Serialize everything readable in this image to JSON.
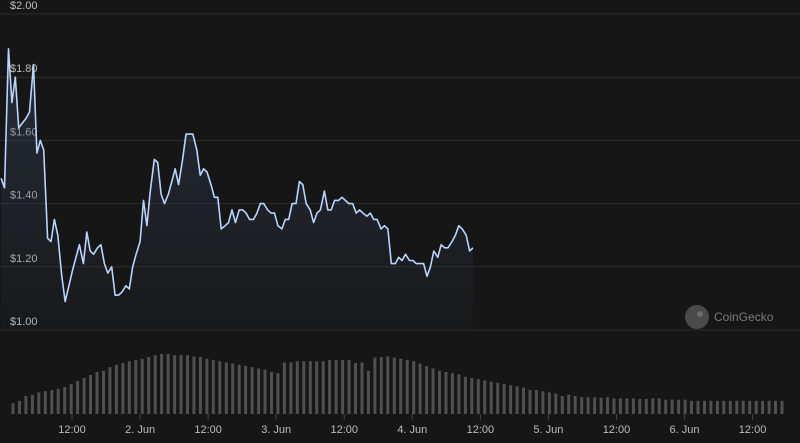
{
  "watermark": {
    "text": "CoinGecko",
    "icon": "coingecko-logo"
  },
  "chart_data": {
    "type": "line",
    "title": "",
    "xlabel": "",
    "ylabel": "",
    "ylim": [
      1.0,
      2.0
    ],
    "y_ticks": [
      {
        "value": 1.0,
        "label": "$1.00"
      },
      {
        "value": 1.2,
        "label": "$1.20"
      },
      {
        "value": 1.4,
        "label": "$1.40"
      },
      {
        "value": 1.6,
        "label": "$1.60"
      },
      {
        "value": 1.8,
        "label": "$1.80"
      },
      {
        "value": 2.0,
        "label": "$2.00"
      }
    ],
    "x_range_hours": [
      -12.7,
      126.6
    ],
    "x_ticks": [
      {
        "hour": 0,
        "label": "12:00"
      },
      {
        "hour": 12,
        "label": "2. Jun"
      },
      {
        "hour": 24,
        "label": "12:00"
      },
      {
        "hour": 36,
        "label": "3. Jun"
      },
      {
        "hour": 48,
        "label": "12:00"
      },
      {
        "hour": 60,
        "label": "4. Jun"
      },
      {
        "hour": 72,
        "label": "12:00"
      },
      {
        "hour": 84,
        "label": "5. Jun"
      },
      {
        "hour": 96,
        "label": "12:00"
      },
      {
        "hour": 108,
        "label": "6. Jun"
      },
      {
        "hour": 120,
        "label": "12:00"
      }
    ],
    "grid": true,
    "colors": {
      "line": "#b9d4ff",
      "area": "#3a4a64",
      "volume": "#505050",
      "grid": "#2c2c2c",
      "background": "#161616"
    },
    "series": [
      {
        "values": [
          [
            -12.5,
            1.48
          ],
          [
            -11.9,
            1.45
          ],
          [
            -11.2,
            1.89
          ],
          [
            -10.6,
            1.72
          ],
          [
            -10.0,
            1.8
          ],
          [
            -9.4,
            1.64
          ],
          [
            -8.1,
            1.67
          ],
          [
            -7.5,
            1.69
          ],
          [
            -6.8,
            1.84
          ],
          [
            -6.2,
            1.56
          ],
          [
            -5.6,
            1.6
          ],
          [
            -5.0,
            1.57
          ],
          [
            -4.3,
            1.29
          ],
          [
            -3.7,
            1.28
          ],
          [
            -3.1,
            1.35
          ],
          [
            -2.5,
            1.3
          ],
          [
            -1.8,
            1.17
          ],
          [
            -1.2,
            1.09
          ],
          [
            0.1,
            1.19
          ],
          [
            0.7,
            1.23
          ],
          [
            1.3,
            1.27
          ],
          [
            2.0,
            1.21
          ],
          [
            2.6,
            1.31
          ],
          [
            3.2,
            1.25
          ],
          [
            3.8,
            1.24
          ],
          [
            4.5,
            1.26
          ],
          [
            5.1,
            1.27
          ],
          [
            5.7,
            1.21
          ],
          [
            6.3,
            1.18
          ],
          [
            7.0,
            1.2
          ],
          [
            7.6,
            1.11
          ],
          [
            8.2,
            1.11
          ],
          [
            8.8,
            1.12
          ],
          [
            9.5,
            1.14
          ],
          [
            10.1,
            1.13
          ],
          [
            10.7,
            1.2
          ],
          [
            11.3,
            1.24
          ],
          [
            12.0,
            1.28
          ],
          [
            12.6,
            1.41
          ],
          [
            13.2,
            1.33
          ],
          [
            13.8,
            1.44
          ],
          [
            14.5,
            1.54
          ],
          [
            15.1,
            1.53
          ],
          [
            15.7,
            1.43
          ],
          [
            16.3,
            1.4
          ],
          [
            17.0,
            1.43
          ],
          [
            17.6,
            1.47
          ],
          [
            18.2,
            1.51
          ],
          [
            18.8,
            1.46
          ],
          [
            19.5,
            1.54
          ],
          [
            20.1,
            1.62
          ],
          [
            20.7,
            1.62
          ],
          [
            21.3,
            1.62
          ],
          [
            22.0,
            1.57
          ],
          [
            22.6,
            1.49
          ],
          [
            23.2,
            1.51
          ],
          [
            23.8,
            1.5
          ],
          [
            24.5,
            1.46
          ],
          [
            25.1,
            1.42
          ],
          [
            25.7,
            1.42
          ],
          [
            26.3,
            1.32
          ],
          [
            27.0,
            1.33
          ],
          [
            27.6,
            1.34
          ],
          [
            28.2,
            1.38
          ],
          [
            28.8,
            1.34
          ],
          [
            29.5,
            1.38
          ],
          [
            30.1,
            1.38
          ],
          [
            30.7,
            1.37
          ],
          [
            31.3,
            1.35
          ],
          [
            32.0,
            1.35
          ],
          [
            32.6,
            1.37
          ],
          [
            33.2,
            1.4
          ],
          [
            33.8,
            1.4
          ],
          [
            34.5,
            1.38
          ],
          [
            35.1,
            1.37
          ],
          [
            35.7,
            1.37
          ],
          [
            36.3,
            1.33
          ],
          [
            37.0,
            1.32
          ],
          [
            37.6,
            1.35
          ],
          [
            38.2,
            1.35
          ],
          [
            38.8,
            1.4
          ],
          [
            39.5,
            1.4
          ],
          [
            40.1,
            1.47
          ],
          [
            40.7,
            1.46
          ],
          [
            41.3,
            1.4
          ],
          [
            42.0,
            1.38
          ],
          [
            42.6,
            1.34
          ],
          [
            43.2,
            1.37
          ],
          [
            43.8,
            1.38
          ],
          [
            44.5,
            1.44
          ],
          [
            45.1,
            1.38
          ],
          [
            45.7,
            1.38
          ],
          [
            46.3,
            1.41
          ],
          [
            47.0,
            1.41
          ],
          [
            47.6,
            1.42
          ],
          [
            48.2,
            1.41
          ],
          [
            48.8,
            1.4
          ],
          [
            49.5,
            1.4
          ],
          [
            50.1,
            1.37
          ],
          [
            50.7,
            1.38
          ],
          [
            51.3,
            1.37
          ],
          [
            52.0,
            1.36
          ],
          [
            52.6,
            1.37
          ],
          [
            53.2,
            1.35
          ],
          [
            53.8,
            1.35
          ],
          [
            54.5,
            1.32
          ],
          [
            55.1,
            1.33
          ],
          [
            55.7,
            1.32
          ],
          [
            56.3,
            1.21
          ],
          [
            57.0,
            1.21
          ],
          [
            57.6,
            1.23
          ],
          [
            58.2,
            1.22
          ],
          [
            58.8,
            1.24
          ],
          [
            59.5,
            1.22
          ],
          [
            60.1,
            1.22
          ],
          [
            60.7,
            1.21
          ],
          [
            61.3,
            1.21
          ],
          [
            62.0,
            1.21
          ],
          [
            62.6,
            1.17
          ],
          [
            63.2,
            1.2
          ],
          [
            63.8,
            1.25
          ],
          [
            64.5,
            1.23
          ],
          [
            65.1,
            1.27
          ],
          [
            65.7,
            1.26
          ],
          [
            66.3,
            1.26
          ],
          [
            67.0,
            1.28
          ],
          [
            67.6,
            1.3
          ],
          [
            68.2,
            1.33
          ],
          [
            68.8,
            1.32
          ],
          [
            69.5,
            1.3
          ],
          [
            70.1,
            1.25
          ],
          [
            70.7,
            1.26
          ]
        ]
      }
    ],
    "volume": {
      "values": [
        0.18,
        0.22,
        0.3,
        0.32,
        0.36,
        0.38,
        0.4,
        0.42,
        0.45,
        0.5,
        0.55,
        0.6,
        0.65,
        0.7,
        0.72,
        0.78,
        0.82,
        0.85,
        0.88,
        0.9,
        0.92,
        0.95,
        0.98,
        1.0,
        1.0,
        0.98,
        0.98,
        0.98,
        0.96,
        0.95,
        0.92,
        0.9,
        0.88,
        0.86,
        0.84,
        0.82,
        0.8,
        0.78,
        0.76,
        0.74,
        0.7,
        0.68,
        0.86,
        0.86,
        0.88,
        0.88,
        0.88,
        0.88,
        0.88,
        0.9,
        0.9,
        0.9,
        0.9,
        0.85,
        0.86,
        0.72,
        0.94,
        0.95,
        0.96,
        0.94,
        0.92,
        0.9,
        0.88,
        0.84,
        0.8,
        0.76,
        0.72,
        0.7,
        0.68,
        0.66,
        0.62,
        0.6,
        0.58,
        0.56,
        0.54,
        0.52,
        0.5,
        0.48,
        0.46,
        0.44,
        0.4,
        0.4,
        0.38,
        0.36,
        0.34,
        0.3,
        0.32,
        0.3,
        0.28,
        0.28,
        0.28,
        0.27,
        0.28,
        0.26,
        0.26,
        0.26,
        0.26,
        0.25,
        0.25,
        0.26,
        0.26,
        0.24,
        0.24,
        0.24,
        0.24,
        0.22,
        0.22,
        0.22,
        0.22,
        0.22,
        0.22,
        0.22,
        0.22,
        0.22,
        0.22,
        0.22,
        0.22,
        0.22,
        0.22,
        0.22
      ]
    }
  }
}
